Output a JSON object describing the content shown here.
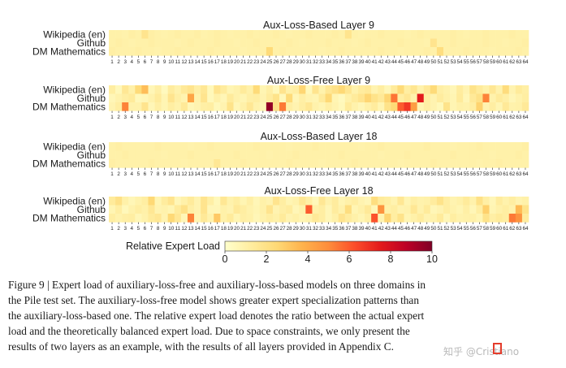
{
  "chart_data": {
    "type": "heatmap",
    "experts": [
      1,
      2,
      3,
      4,
      5,
      6,
      7,
      8,
      9,
      10,
      11,
      12,
      13,
      14,
      15,
      16,
      17,
      18,
      19,
      20,
      21,
      22,
      23,
      24,
      25,
      26,
      27,
      28,
      29,
      30,
      31,
      32,
      33,
      34,
      35,
      36,
      37,
      38,
      39,
      40,
      41,
      42,
      43,
      44,
      45,
      46,
      47,
      48,
      49,
      50,
      51,
      52,
      53,
      54,
      55,
      56,
      57,
      58,
      59,
      60,
      61,
      62,
      63,
      64
    ],
    "domains": [
      "Wikipedia (en)",
      "Github",
      "DM Mathematics"
    ],
    "colorbar": {
      "label": "Relative Expert Load",
      "ticks": [
        0,
        2,
        4,
        6,
        8,
        10
      ],
      "range": [
        0,
        10
      ]
    },
    "panels": [
      {
        "title": "Aux-Loss-Based Layer 9",
        "rows": [
          [
            1.0,
            1.0,
            0.9,
            1.1,
            1.0,
            1.8,
            1.1,
            1.0,
            0.9,
            1.0,
            1.1,
            1.0,
            1.0,
            1.1,
            0.9,
            1.0,
            1.1,
            1.0,
            0.9,
            1.0,
            1.0,
            1.1,
            1.0,
            1.0,
            1.0,
            1.1,
            1.0,
            0.9,
            1.0,
            1.0,
            1.1,
            1.0,
            1.0,
            1.0,
            1.1,
            1.0,
            1.8,
            1.0,
            0.9,
            1.0,
            1.0,
            1.1,
            1.0,
            1.0,
            1.0,
            0.9,
            1.0,
            1.1,
            1.0,
            1.0,
            1.0,
            1.0,
            1.1,
            1.0,
            0.9,
            1.0,
            1.0,
            1.1,
            1.0,
            1.0,
            1.0,
            1.1,
            1.0,
            1.0
          ],
          [
            1.0,
            1.1,
            1.0,
            0.9,
            1.0,
            1.0,
            1.1,
            1.0,
            1.0,
            1.0,
            0.9,
            1.0,
            1.1,
            1.0,
            1.0,
            1.0,
            1.1,
            1.0,
            1.0,
            0.9,
            1.0,
            1.0,
            1.1,
            1.0,
            1.0,
            1.0,
            1.0,
            1.1,
            1.0,
            0.9,
            1.0,
            1.0,
            1.0,
            1.1,
            1.0,
            1.0,
            1.0,
            0.9,
            1.0,
            1.1,
            1.0,
            1.0,
            1.0,
            1.0,
            1.1,
            1.0,
            1.0,
            1.0,
            0.9,
            1.8,
            1.0,
            1.0,
            1.1,
            1.0,
            1.0,
            1.0,
            1.0,
            1.1,
            1.0,
            1.0,
            0.9,
            1.0,
            1.0,
            1.1
          ],
          [
            1.1,
            1.0,
            1.0,
            1.0,
            1.1,
            1.0,
            1.0,
            0.9,
            1.0,
            1.0,
            1.1,
            1.0,
            1.0,
            1.0,
            1.0,
            1.1,
            1.0,
            1.0,
            1.0,
            1.0,
            0.9,
            1.0,
            1.0,
            1.0,
            2.4,
            1.0,
            1.1,
            1.0,
            1.0,
            1.0,
            1.0,
            1.0,
            0.9,
            1.0,
            1.0,
            1.1,
            1.0,
            1.0,
            1.0,
            1.0,
            1.0,
            1.1,
            1.0,
            1.0,
            0.9,
            1.0,
            1.0,
            1.0,
            1.1,
            1.0,
            2.2,
            1.0,
            1.0,
            1.0,
            1.1,
            1.0,
            1.0,
            1.0,
            0.9,
            1.0,
            1.0,
            1.0,
            1.1,
            1.0
          ]
        ]
      },
      {
        "title": "Aux-Loss-Free Layer 9",
        "rows": [
          [
            1.2,
            0.5,
            1.6,
            1.0,
            2.4,
            3.4,
            0.6,
            1.1,
            0.4,
            1.3,
            0.9,
            1.5,
            1.8,
            1.1,
            1.6,
            0.5,
            1.8,
            1.3,
            0.7,
            0.9,
            1.4,
            1.0,
            2.4,
            0.7,
            1.1,
            0.5,
            1.8,
            1.0,
            1.2,
            2.6,
            0.5,
            1.8,
            0.9,
            1.6,
            2.0,
            2.5,
            1.7,
            0.9,
            1.3,
            1.5,
            0.8,
            1.2,
            0.6,
            1.4,
            2.4,
            1.2,
            1.7,
            0.9,
            1.5,
            2.4,
            1.1,
            0.9,
            0.6,
            1.3,
            0.8,
            1.9,
            1.4,
            1.0,
            1.6,
            0.9,
            2.3,
            0.8,
            1.4,
            1.1
          ],
          [
            0.6,
            0.9,
            1.2,
            1.4,
            0.5,
            0.6,
            0.9,
            1.4,
            0.7,
            1.8,
            1.1,
            0.8,
            4.2,
            0.9,
            1.8,
            0.5,
            1.0,
            0.6,
            1.4,
            0.9,
            0.7,
            1.1,
            1.2,
            0.8,
            1.3,
            1.9,
            0.5,
            2.4,
            0.6,
            1.1,
            0.8,
            0.7,
            1.4,
            2.5,
            0.7,
            0.4,
            1.0,
            1.4,
            1.8,
            2.6,
            1.9,
            1.5,
            2.6,
            5.5,
            1.2,
            1.6,
            0.9,
            7.5,
            1.2,
            0.8,
            1.3,
            1.0,
            0.7,
            1.4,
            0.6,
            1.5,
            2.0,
            5.2,
            0.9,
            1.4,
            1.1,
            0.6,
            0.9,
            1.2
          ],
          [
            0.8,
            1.2,
            5.2,
            0.9,
            0.9,
            1.8,
            0.6,
            1.1,
            0.7,
            1.2,
            0.9,
            1.5,
            0.6,
            0.8,
            1.1,
            1.2,
            0.5,
            0.8,
            1.9,
            0.6,
            1.0,
            1.6,
            0.9,
            0.6,
            9.6,
            2.0,
            5.4,
            1.1,
            0.8,
            1.2,
            1.6,
            0.9,
            0.7,
            1.1,
            0.8,
            0.5,
            1.4,
            0.9,
            0.6,
            1.0,
            1.3,
            0.7,
            1.9,
            2.5,
            6.0,
            6.8,
            4.4,
            0.7,
            1.1,
            0.8,
            0.5,
            1.9,
            0.7,
            1.0,
            0.9,
            1.2,
            2.7,
            0.8,
            1.2,
            0.7,
            1.5,
            0.9,
            1.0,
            1.5
          ]
        ]
      },
      {
        "title": "Aux-Loss-Based Layer 18",
        "rows": [
          [
            1.0,
            1.1,
            1.0,
            1.0,
            1.0,
            1.0,
            1.0,
            1.1,
            1.0,
            1.0,
            1.0,
            1.0,
            0.9,
            1.0,
            1.0,
            1.1,
            1.0,
            1.0,
            1.0,
            1.0,
            1.0,
            1.0,
            1.1,
            1.0,
            1.0,
            1.0,
            1.0,
            0.9,
            1.0,
            1.0,
            1.0,
            1.1,
            1.0,
            1.0,
            1.0,
            1.0,
            1.0,
            1.0,
            0.9,
            1.0,
            1.0,
            1.1,
            1.0,
            1.0,
            1.0,
            1.0,
            1.0,
            1.0,
            1.1,
            1.0,
            1.0,
            1.0,
            0.9,
            1.0,
            1.0,
            1.0,
            1.1,
            1.0,
            1.0,
            1.0,
            1.0,
            1.0,
            1.0,
            1.1
          ],
          [
            1.0,
            1.0,
            1.1,
            1.0,
            1.0,
            1.0,
            1.0,
            1.0,
            0.9,
            1.0,
            1.0,
            1.0,
            1.1,
            1.0,
            1.0,
            1.0,
            1.0,
            1.0,
            1.0,
            1.1,
            1.0,
            1.0,
            1.0,
            1.0,
            0.9,
            1.0,
            1.0,
            1.0,
            1.1,
            1.0,
            1.0,
            1.0,
            1.0,
            1.0,
            1.0,
            1.1,
            1.0,
            1.0,
            1.0,
            1.0,
            1.0,
            0.9,
            1.0,
            1.0,
            1.0,
            1.1,
            1.0,
            1.0,
            1.0,
            1.0,
            1.0,
            1.0,
            1.1,
            1.0,
            1.0,
            1.0,
            1.0,
            1.0,
            0.9,
            1.0,
            1.0,
            1.0,
            1.1,
            1.0
          ],
          [
            1.1,
            1.0,
            1.0,
            1.0,
            1.0,
            1.0,
            1.1,
            1.0,
            1.0,
            1.0,
            1.0,
            0.9,
            1.0,
            1.0,
            1.0,
            1.0,
            1.6,
            1.0,
            1.0,
            1.0,
            1.1,
            1.0,
            1.0,
            1.0,
            1.0,
            1.0,
            1.0,
            1.1,
            1.0,
            1.0,
            1.0,
            1.0,
            0.9,
            1.0,
            1.0,
            1.0,
            1.0,
            1.1,
            1.0,
            1.0,
            1.0,
            1.0,
            1.0,
            1.0,
            0.9,
            1.0,
            1.0,
            1.0,
            1.0,
            1.1,
            1.0,
            1.0,
            1.0,
            1.0,
            1.0,
            1.0,
            0.9,
            1.0,
            1.0,
            1.1,
            1.0,
            1.0,
            1.0,
            1.0
          ]
        ]
      },
      {
        "title": "Aux-Loss-Free Layer 18",
        "rows": [
          [
            1.4,
            2.0,
            1.0,
            0.6,
            0.9,
            1.2,
            2.5,
            0.7,
            1.3,
            1.8,
            0.6,
            1.0,
            1.4,
            0.8,
            1.8,
            1.1,
            0.5,
            1.6,
            0.9,
            1.2,
            0.7,
            1.1,
            0.6,
            1.0,
            0.8,
            1.8,
            1.2,
            0.7,
            0.9,
            1.6,
            1.1,
            0.5,
            1.6,
            0.9,
            1.3,
            0.7,
            1.0,
            1.2,
            0.8,
            0.6,
            2.2,
            1.4,
            1.2,
            0.8,
            1.6,
            0.7,
            1.1,
            0.9,
            1.0,
            1.3,
            1.9,
            1.2,
            0.8,
            1.0,
            1.4,
            0.9,
            2.0,
            1.1,
            0.6,
            1.3,
            0.9,
            1.2,
            0.8,
            1.0
          ],
          [
            0.7,
            1.2,
            0.5,
            0.9,
            1.2,
            1.0,
            1.6,
            0.8,
            0.9,
            0.7,
            1.4,
            2.0,
            1.1,
            0.8,
            1.8,
            0.6,
            0.6,
            1.0,
            0.8,
            1.5,
            1.2,
            0.9,
            0.7,
            1.0,
            1.8,
            0.8,
            1.1,
            1.3,
            0.6,
            0.9,
            6.0,
            1.0,
            1.2,
            0.6,
            1.3,
            0.9,
            2.2,
            0.7,
            1.0,
            1.5,
            0.6,
            4.8,
            1.0,
            1.2,
            0.8,
            0.9,
            1.6,
            0.9,
            1.4,
            0.6,
            0.8,
            1.2,
            0.9,
            0.7,
            1.1,
            0.6,
            1.2,
            2.8,
            0.7,
            1.0,
            1.2,
            0.9,
            3.5,
            1.9
          ],
          [
            1.2,
            0.9,
            1.1,
            1.2,
            0.6,
            0.9,
            1.4,
            1.6,
            0.8,
            2.5,
            1.6,
            0.6,
            5.2,
            0.7,
            1.5,
            0.9,
            3.0,
            1.0,
            1.4,
            0.7,
            1.1,
            1.0,
            0.6,
            0.9,
            1.2,
            1.0,
            1.4,
            0.8,
            1.0,
            0.7,
            0.9,
            1.5,
            1.2,
            0.6,
            1.0,
            1.8,
            1.3,
            1.0,
            0.7,
            1.1,
            6.2,
            0.8,
            2.6,
            1.2,
            1.9,
            0.7,
            1.0,
            1.3,
            0.8,
            0.9,
            1.4,
            0.6,
            1.2,
            0.9,
            1.0,
            1.0,
            0.7,
            1.9,
            1.1,
            1.4,
            1.2,
            5.4,
            4.8,
            1.3
          ]
        ]
      }
    ]
  },
  "caption": {
    "lines": [
      "Figure 9 | Expert load of auxiliary-loss-free and auxiliary-loss-based models on three domains in",
      "the Pile test set. The auxiliary-loss-free model shows greater expert specialization patterns than",
      "the auxiliary-loss-based one. The relative expert load denotes the ratio between the actual expert",
      "load and the theoretically balanced expert load. Due to space constraints, we only present the",
      "results of two layers as an example, with the results of all layers provided in Appendix C."
    ]
  },
  "watermark": {
    "text": "知乎 @Cristiano"
  },
  "colors": {
    "scale": [
      "#ffffcc",
      "#ffeda0",
      "#fed976",
      "#feb24c",
      "#fd8d3c",
      "#fc4e2a",
      "#e31a1c",
      "#bd0026",
      "#800026"
    ],
    "text": "#1a1a1a",
    "tick": "#222222"
  }
}
